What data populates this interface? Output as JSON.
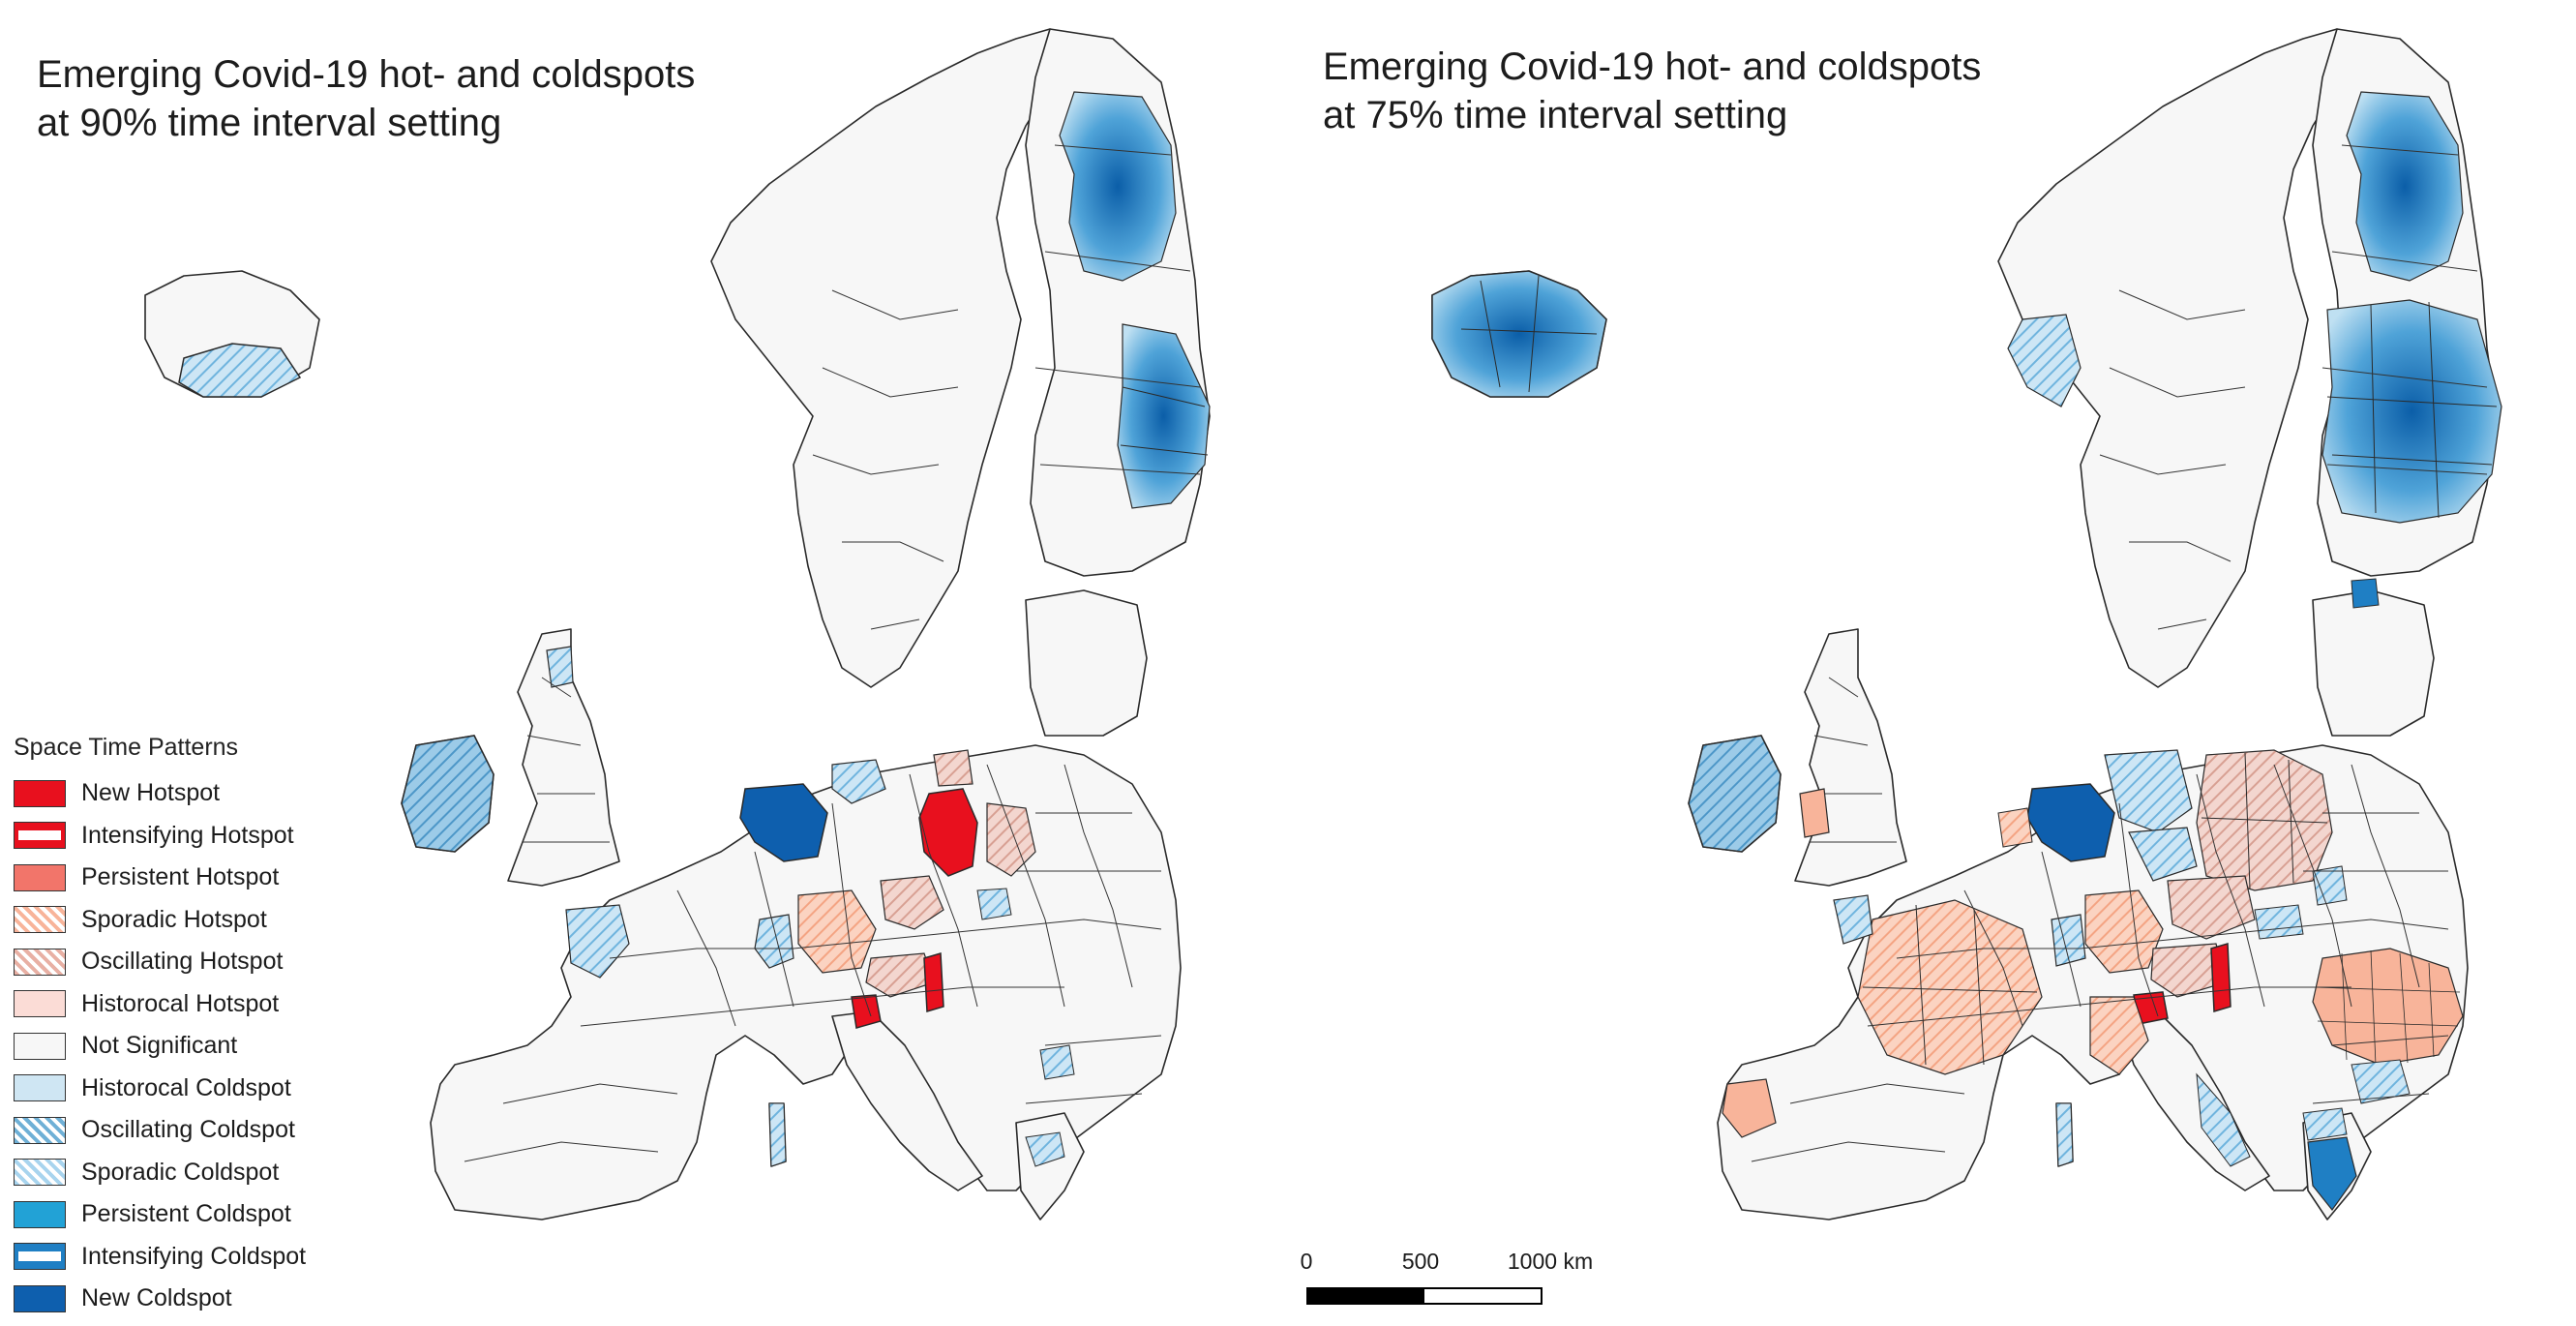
{
  "maps": [
    {
      "title_line1": "Emerging Covid-19 hot- and coldspots",
      "title_line2": "at 90% time interval setting"
    },
    {
      "title_line1": "Emerging Covid-19 hot- and coldspots",
      "title_line2": "at 75% time interval setting"
    }
  ],
  "legend": {
    "title": "Space Time Patterns",
    "items": [
      {
        "label": "New Hotspot",
        "color": "#e8101e",
        "pattern": "solid"
      },
      {
        "label": "Intensifying Hotspot",
        "color": "#e8101e",
        "pattern": "intensifying"
      },
      {
        "label": "Persistent Hotspot",
        "color": "#f2756a",
        "pattern": "solid"
      },
      {
        "label": "Sporadic Hotspot",
        "color": "#f8b49a",
        "pattern": "hatch"
      },
      {
        "label": "Oscillating Hotspot",
        "color": "#e8b0a4",
        "pattern": "hatch"
      },
      {
        "label": "Historocal Hotspot",
        "color": "#fbdcd6",
        "pattern": "solid"
      },
      {
        "label": "Not Significant",
        "color": "#f7f7f7",
        "pattern": "solid"
      },
      {
        "label": "Historocal Coldspot",
        "color": "#cfe6f3",
        "pattern": "solid"
      },
      {
        "label": "Oscillating Coldspot",
        "color": "#6fb0d6",
        "pattern": "hatch"
      },
      {
        "label": "Sporadic Coldspot",
        "color": "#a8d4ee",
        "pattern": "hatch"
      },
      {
        "label": "Persistent Coldspot",
        "color": "#22a2d6",
        "pattern": "solid"
      },
      {
        "label": "Intensifying Coldspot",
        "color": "#1f7fc4",
        "pattern": "intensifying"
      },
      {
        "label": "New Coldspot",
        "color": "#0e5fae",
        "pattern": "solid"
      }
    ]
  },
  "scalebar": {
    "labels": [
      "0",
      "500",
      "1000 km"
    ]
  }
}
